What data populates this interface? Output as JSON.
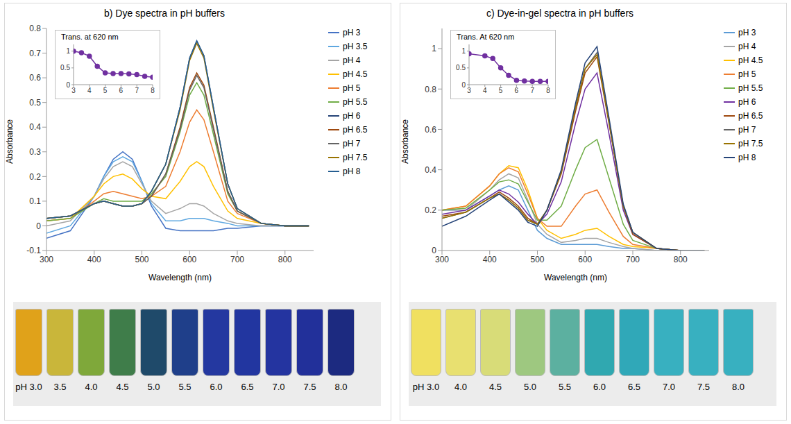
{
  "chart_data": [
    {
      "type": "line",
      "title": "b) Dye spectra in pH buffers",
      "x_label": "Wavelength (nm)",
      "y_label": "Absorbance",
      "xlim": [
        300,
        860
      ],
      "xticks": [
        300,
        400,
        500,
        600,
        700,
        800
      ],
      "ylim": [
        -0.1,
        0.8
      ],
      "yticks": [
        -0.1,
        0,
        0.1,
        0.2,
        0.3,
        0.4,
        0.5,
        0.6,
        0.7,
        0.8
      ],
      "legend": "right",
      "x": [
        300,
        350,
        400,
        420,
        440,
        460,
        480,
        500,
        520,
        550,
        580,
        600,
        615,
        630,
        650,
        680,
        700,
        750,
        800,
        850
      ],
      "series": [
        {
          "name": "pH 3",
          "color": "#4472c4",
          "values": [
            -0.05,
            -0.02,
            0.12,
            0.2,
            0.27,
            0.3,
            0.27,
            0.18,
            0.08,
            -0.01,
            -0.02,
            -0.02,
            -0.02,
            -0.02,
            -0.02,
            -0.01,
            -0.01,
            0,
            0,
            0
          ]
        },
        {
          "name": "pH 3.5",
          "color": "#5ea7e0",
          "values": [
            -0.03,
            0,
            0.12,
            0.2,
            0.26,
            0.28,
            0.26,
            0.18,
            0.09,
            0.02,
            0.02,
            0.03,
            0.03,
            0.03,
            0.02,
            0.01,
            0,
            0,
            0,
            0
          ]
        },
        {
          "name": "pH 4",
          "color": "#a5a5a5",
          "values": [
            0,
            0.02,
            0.12,
            0.19,
            0.24,
            0.26,
            0.24,
            0.17,
            0.1,
            0.05,
            0.07,
            0.09,
            0.09,
            0.08,
            0.05,
            0.02,
            0.01,
            0,
            0,
            0
          ]
        },
        {
          "name": "pH 4.5",
          "color": "#ffc000",
          "values": [
            0.02,
            0.03,
            0.12,
            0.17,
            0.2,
            0.21,
            0.19,
            0.15,
            0.12,
            0.11,
            0.18,
            0.24,
            0.26,
            0.24,
            0.16,
            0.06,
            0.03,
            0.01,
            0,
            0
          ]
        },
        {
          "name": "pH 5",
          "color": "#ed7d31",
          "values": [
            0.02,
            0.03,
            0.1,
            0.13,
            0.14,
            0.13,
            0.12,
            0.11,
            0.12,
            0.16,
            0.3,
            0.42,
            0.47,
            0.43,
            0.3,
            0.1,
            0.05,
            0.01,
            0,
            0
          ]
        },
        {
          "name": "pH 5.5",
          "color": "#70ad47",
          "values": [
            0.02,
            0.03,
            0.09,
            0.11,
            0.1,
            0.1,
            0.1,
            0.1,
            0.13,
            0.2,
            0.38,
            0.53,
            0.58,
            0.53,
            0.37,
            0.13,
            0.06,
            0.01,
            0,
            0
          ]
        },
        {
          "name": "pH 6",
          "color": "#264478",
          "values": [
            0.03,
            0.04,
            0.09,
            0.1,
            0.09,
            0.08,
            0.08,
            0.09,
            0.14,
            0.25,
            0.48,
            0.68,
            0.75,
            0.69,
            0.48,
            0.17,
            0.07,
            0.01,
            0,
            0
          ]
        },
        {
          "name": "pH 6.5",
          "color": "#9e480e",
          "values": [
            0.03,
            0.04,
            0.09,
            0.1,
            0.09,
            0.08,
            0.08,
            0.09,
            0.12,
            0.21,
            0.4,
            0.56,
            0.62,
            0.57,
            0.4,
            0.14,
            0.06,
            0.01,
            0,
            0
          ]
        },
        {
          "name": "pH 7",
          "color": "#636363",
          "values": [
            0.03,
            0.04,
            0.09,
            0.1,
            0.09,
            0.08,
            0.08,
            0.09,
            0.12,
            0.21,
            0.39,
            0.55,
            0.61,
            0.56,
            0.39,
            0.14,
            0.06,
            0.01,
            0,
            0
          ]
        },
        {
          "name": "pH 7.5",
          "color": "#997300",
          "values": [
            0.03,
            0.04,
            0.09,
            0.1,
            0.09,
            0.08,
            0.08,
            0.09,
            0.14,
            0.25,
            0.47,
            0.67,
            0.74,
            0.68,
            0.47,
            0.17,
            0.07,
            0.01,
            0,
            0
          ]
        },
        {
          "name": "pH 8",
          "color": "#255e91",
          "values": [
            0.03,
            0.04,
            0.09,
            0.1,
            0.09,
            0.08,
            0.08,
            0.09,
            0.14,
            0.25,
            0.48,
            0.68,
            0.75,
            0.69,
            0.48,
            0.17,
            0.07,
            0.01,
            0,
            0
          ]
        }
      ]
    },
    {
      "type": "line",
      "title": "Trans. at 620 nm",
      "xlim": [
        3,
        8
      ],
      "xticks": [
        3,
        4,
        5,
        6,
        7,
        8
      ],
      "ylim": [
        0,
        1.2
      ],
      "yticks": [
        0,
        0.5,
        1
      ],
      "marker": "circle",
      "color": "#7030a0",
      "x": [
        3,
        3.5,
        4,
        4.5,
        5,
        5.5,
        6,
        6.5,
        7,
        7.5,
        8
      ],
      "values": [
        1,
        0.95,
        0.85,
        0.55,
        0.35,
        0.33,
        0.33,
        0.32,
        0.3,
        0.25,
        0.22
      ]
    },
    {
      "type": "line",
      "title": "c) Dye-in-gel spectra in pH buffers",
      "x_label": "Wavelength (nm)",
      "y_label": "Absorbance",
      "xlim": [
        300,
        860
      ],
      "xticks": [
        300,
        400,
        500,
        600,
        700,
        800
      ],
      "ylim": [
        0,
        1.1
      ],
      "yticks": [
        0,
        0.2,
        0.4,
        0.6,
        0.8,
        1
      ],
      "legend": "right",
      "x": [
        300,
        350,
        400,
        420,
        440,
        460,
        480,
        500,
        520,
        550,
        580,
        600,
        625,
        650,
        680,
        700,
        750,
        800,
        850
      ],
      "series": [
        {
          "name": "pH 3",
          "color": "#5b9bd5",
          "values": [
            0.2,
            0.2,
            0.27,
            0.3,
            0.32,
            0.3,
            0.2,
            0.1,
            0.06,
            0.03,
            0.03,
            0.03,
            0.03,
            0.02,
            0.01,
            0.01,
            0,
            0,
            0
          ]
        },
        {
          "name": "pH 4",
          "color": "#a5a5a5",
          "values": [
            0.2,
            0.2,
            0.3,
            0.35,
            0.38,
            0.36,
            0.25,
            0.13,
            0.08,
            0.04,
            0.05,
            0.06,
            0.06,
            0.04,
            0.02,
            0.01,
            0,
            0,
            0
          ]
        },
        {
          "name": "pH 4.5",
          "color": "#ffc000",
          "values": [
            0.2,
            0.22,
            0.32,
            0.38,
            0.42,
            0.41,
            0.3,
            0.16,
            0.1,
            0.06,
            0.08,
            0.1,
            0.11,
            0.07,
            0.03,
            0.02,
            0.01,
            0,
            0
          ]
        },
        {
          "name": "pH 5",
          "color": "#ed7d31",
          "values": [
            0.2,
            0.22,
            0.32,
            0.38,
            0.41,
            0.39,
            0.28,
            0.16,
            0.12,
            0.12,
            0.22,
            0.28,
            0.3,
            0.19,
            0.07,
            0.03,
            0.01,
            0,
            0
          ]
        },
        {
          "name": "pH 5.5",
          "color": "#70ad47",
          "values": [
            0.2,
            0.21,
            0.3,
            0.34,
            0.35,
            0.33,
            0.24,
            0.15,
            0.15,
            0.22,
            0.4,
            0.51,
            0.55,
            0.36,
            0.13,
            0.05,
            0.01,
            0,
            0
          ]
        },
        {
          "name": "pH 6",
          "color": "#7030a0",
          "values": [
            0.18,
            0.2,
            0.27,
            0.3,
            0.28,
            0.24,
            0.18,
            0.13,
            0.18,
            0.34,
            0.63,
            0.8,
            0.88,
            0.58,
            0.2,
            0.08,
            0.01,
            0,
            0
          ]
        },
        {
          "name": "pH 6.5",
          "color": "#9e480e",
          "values": [
            0.17,
            0.19,
            0.26,
            0.29,
            0.26,
            0.22,
            0.16,
            0.13,
            0.2,
            0.38,
            0.69,
            0.88,
            0.96,
            0.63,
            0.22,
            0.08,
            0.01,
            0,
            0
          ]
        },
        {
          "name": "pH 7",
          "color": "#636363",
          "values": [
            0.16,
            0.19,
            0.26,
            0.28,
            0.25,
            0.21,
            0.15,
            0.13,
            0.2,
            0.39,
            0.71,
            0.9,
            0.98,
            0.64,
            0.22,
            0.09,
            0.01,
            0,
            0
          ]
        },
        {
          "name": "pH 7.5",
          "color": "#997300",
          "values": [
            0.16,
            0.19,
            0.26,
            0.28,
            0.25,
            0.21,
            0.15,
            0.13,
            0.2,
            0.39,
            0.71,
            0.9,
            0.97,
            0.64,
            0.22,
            0.09,
            0.01,
            0,
            0
          ]
        },
        {
          "name": "pH 8",
          "color": "#264478",
          "values": [
            0.12,
            0.17,
            0.25,
            0.28,
            0.24,
            0.2,
            0.14,
            0.12,
            0.2,
            0.4,
            0.73,
            0.93,
            1.01,
            0.66,
            0.23,
            0.09,
            0.01,
            0,
            0
          ]
        }
      ]
    },
    {
      "type": "line",
      "title": "Trans. At 620 nm",
      "xlim": [
        3,
        8
      ],
      "xticks": [
        3,
        4,
        5,
        6,
        7,
        8
      ],
      "ylim": [
        0,
        1.2
      ],
      "yticks": [
        0,
        0.5,
        1
      ],
      "marker": "circle",
      "color": "#7030a0",
      "x": [
        3,
        4,
        4.5,
        5,
        5.5,
        6,
        6.5,
        7,
        7.5,
        8
      ],
      "values": [
        0.92,
        0.86,
        0.78,
        0.5,
        0.28,
        0.13,
        0.11,
        0.1,
        0.1,
        0.1
      ]
    }
  ],
  "photos": [
    {
      "labels": [
        "pH 3.0",
        "3.5",
        "4.0",
        "4.5",
        "5.0",
        "5.5",
        "6.0",
        "6.5",
        "7.0",
        "7.5",
        "8.0"
      ],
      "colors": [
        "#e0a21a",
        "#c9b63a",
        "#7fa83a",
        "#3f7d4a",
        "#1f4a6a",
        "#1f3f8a",
        "#2438a0",
        "#2236a0",
        "#2434a0",
        "#22309a",
        "#1c2a80"
      ]
    },
    {
      "labels": [
        "pH 3.0",
        "4.0",
        "4.5",
        "5.0",
        "5.5",
        "6.0",
        "6.5",
        "7.0",
        "7.5",
        "8.0"
      ],
      "colors": [
        "#f0e060",
        "#e8e070",
        "#d8dc78",
        "#9ec880",
        "#5cb0a0",
        "#30a8b0",
        "#30a8b8",
        "#38b0c0",
        "#38b0c0",
        "#38b0c0"
      ]
    }
  ]
}
